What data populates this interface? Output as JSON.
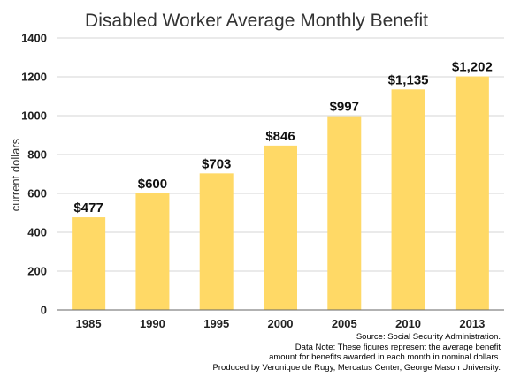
{
  "chart_data": {
    "type": "bar",
    "title": "Disabled Worker Average Monthly Benefit",
    "ylabel": "current dollars",
    "xlabel": "",
    "categories": [
      "1985",
      "1990",
      "1995",
      "2000",
      "2005",
      "2010",
      "2013"
    ],
    "values": [
      477,
      600,
      703,
      846,
      997,
      1135,
      1202
    ],
    "data_labels": [
      "$477",
      "$600",
      "$703",
      "$846",
      "$997",
      "$1,135",
      "$1,202"
    ],
    "ylim": [
      0,
      1400
    ],
    "yticks": [
      0,
      200,
      400,
      600,
      800,
      1000,
      1200,
      1400
    ],
    "grid": true,
    "bar_color": "#FFD966"
  },
  "notes": {
    "source": "Source: Social Security Administration.",
    "data_note_1": "Data Note: These figures represent the average benefit",
    "data_note_2": "amount for benefits awarded in each month in nominal dollars.",
    "produced_by": "Produced by Veronique de Rugy, Mercatus Center, George Mason University."
  }
}
